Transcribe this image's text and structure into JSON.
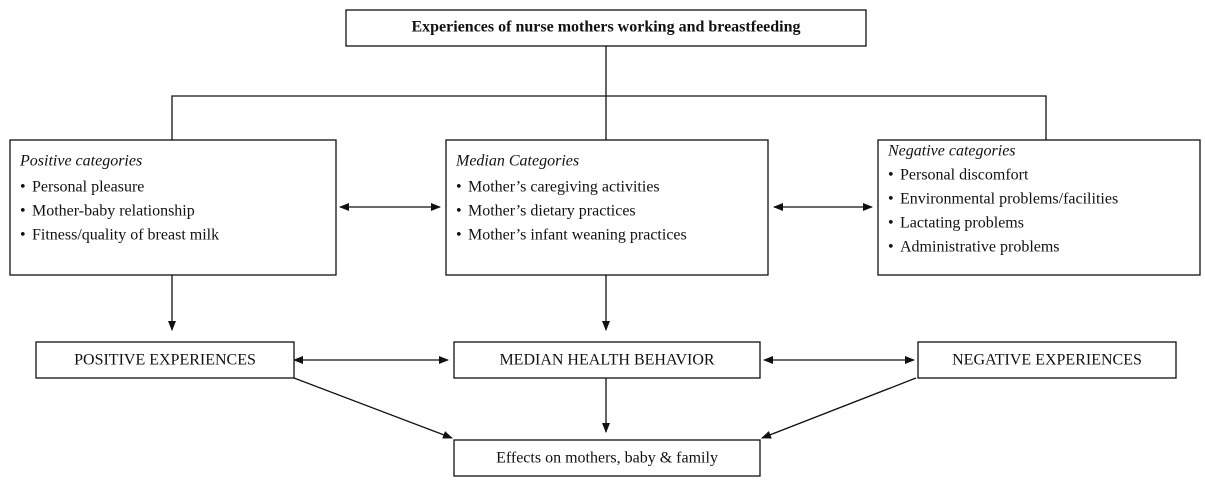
{
  "title": "Experiences of nurse mothers working and breastfeeding",
  "categories": [
    {
      "heading": "Positive categories",
      "items": [
        "Personal pleasure",
        "Mother-baby relationship",
        "Fitness/quality of breast milk"
      ]
    },
    {
      "heading": "Median Categories",
      "items": [
        "Mother’s caregiving activities",
        "Mother’s dietary practices",
        "Mother’s infant weaning practices"
      ]
    },
    {
      "heading": "Negative categories",
      "items": [
        "Personal discomfort",
        "Environmental problems/facilities",
        "Lactating problems",
        "Administrative problems"
      ]
    }
  ],
  "outcomes": [
    "POSITIVE EXPERIENCES",
    "MEDIAN HEALTH BEHAVIOR",
    "NEGATIVE EXPERIENCES"
  ],
  "effect": "Effects on mothers, baby & family"
}
